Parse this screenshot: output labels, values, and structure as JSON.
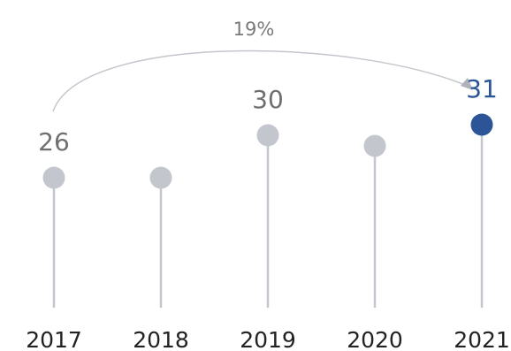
{
  "chart_data": {
    "type": "lollipop",
    "categories": [
      "2017",
      "2018",
      "2019",
      "2020",
      "2021"
    ],
    "values": [
      26,
      26,
      30,
      29,
      31
    ],
    "value_labels": [
      "26",
      "",
      "30",
      "",
      "31"
    ],
    "highlight_index": 4,
    "annotation": {
      "from": "2017",
      "to": "2021",
      "text": "19%"
    },
    "title": "",
    "xlabel": "",
    "ylabel": "",
    "grid": false,
    "legend": false
  },
  "colors": {
    "default_dot": "#c3c7cd",
    "highlight_dot": "#2b5597",
    "stem": "#c3c7cd",
    "default_value_text": "#6f6f6f",
    "highlight_value_text": "#2b5597"
  }
}
